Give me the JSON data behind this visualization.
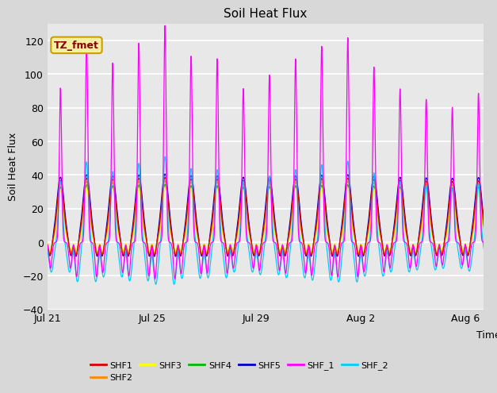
{
  "title": "Soil Heat Flux",
  "ylabel": "Soil Heat Flux",
  "xlabel": "Time",
  "ylim": [
    -40,
    130
  ],
  "yticks": [
    -40,
    -20,
    0,
    20,
    40,
    60,
    80,
    100,
    120
  ],
  "fig_bg_color": "#d8d8d8",
  "plot_bg_color": "#e8e8e8",
  "annotation_text": "TZ_fmet",
  "annotation_bg": "#f5f0a0",
  "annotation_border": "#c8a000",
  "annotation_text_color": "#8b0000",
  "series": [
    {
      "label": "SHF1",
      "color": "#dd0000"
    },
    {
      "label": "SHF2",
      "color": "#ff8800"
    },
    {
      "label": "SHF3",
      "color": "#ffff00"
    },
    {
      "label": "SHF4",
      "color": "#00bb00"
    },
    {
      "label": "SHF5",
      "color": "#0000cc"
    },
    {
      "label": "SHF_1",
      "color": "#ff00ff"
    },
    {
      "label": "SHF_2",
      "color": "#00ccff"
    }
  ],
  "num_days": 17,
  "tick_labels": [
    "Jul 21",
    "Jul 25",
    "Jul 29",
    "Aug 2",
    "Aug 6"
  ],
  "tick_positions_days": [
    0,
    4,
    8,
    12,
    16
  ]
}
